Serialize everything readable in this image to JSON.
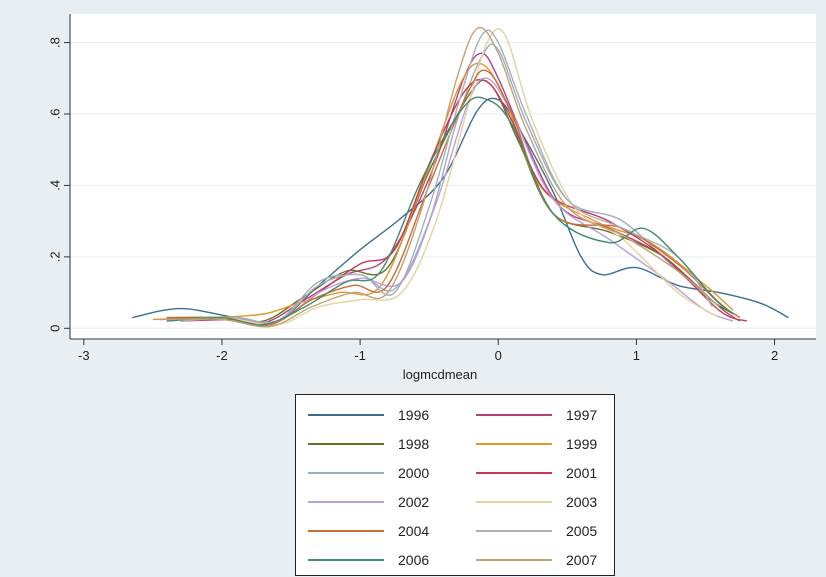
{
  "chart_data": {
    "type": "line",
    "title": "",
    "xlabel": "logmcdmean",
    "ylabel": "",
    "xlim": [
      -3.1,
      2.3
    ],
    "ylim": [
      -0.03,
      0.88
    ],
    "xticks": [
      -3,
      -2,
      -1,
      0,
      1,
      2
    ],
    "xtick_labels": [
      "-3",
      "-2",
      "-1",
      "0",
      "1",
      "2"
    ],
    "yticks": [
      0,
      0.2,
      0.4,
      0.6,
      0.8
    ],
    "ytick_labels": [
      "0",
      ".2",
      ".4",
      ".6",
      ".8"
    ],
    "grid": true,
    "legend_position": "bottom",
    "series": [
      {
        "name": "1996",
        "color": "#3e6e8e",
        "points": [
          [
            -2.65,
            0.03
          ],
          [
            -2.3,
            0.055
          ],
          [
            -1.9,
            0.03
          ],
          [
            -1.6,
            0.02
          ],
          [
            -1.3,
            0.12
          ],
          [
            -1.0,
            0.22
          ],
          [
            -0.7,
            0.31
          ],
          [
            -0.4,
            0.42
          ],
          [
            -0.15,
            0.61
          ],
          [
            0.0,
            0.64
          ],
          [
            0.15,
            0.56
          ],
          [
            0.4,
            0.38
          ],
          [
            0.6,
            0.2
          ],
          [
            0.75,
            0.15
          ],
          [
            1.0,
            0.17
          ],
          [
            1.3,
            0.12
          ],
          [
            1.6,
            0.1
          ],
          [
            1.9,
            0.07
          ],
          [
            2.1,
            0.03
          ]
        ]
      },
      {
        "name": "1997",
        "color": "#b2437a",
        "points": [
          [
            -2.45,
            0.025
          ],
          [
            -2.0,
            0.03
          ],
          [
            -1.7,
            0.015
          ],
          [
            -1.4,
            0.08
          ],
          [
            -1.1,
            0.15
          ],
          [
            -0.8,
            0.2
          ],
          [
            -0.5,
            0.42
          ],
          [
            -0.25,
            0.7
          ],
          [
            -0.12,
            0.77
          ],
          [
            0.0,
            0.7
          ],
          [
            0.2,
            0.52
          ],
          [
            0.45,
            0.34
          ],
          [
            0.8,
            0.28
          ],
          [
            1.2,
            0.2
          ],
          [
            1.6,
            0.06
          ],
          [
            1.75,
            0.02
          ]
        ]
      },
      {
        "name": "1998",
        "color": "#6a6e2c",
        "points": [
          [
            -2.4,
            0.03
          ],
          [
            -2.0,
            0.03
          ],
          [
            -1.7,
            0.02
          ],
          [
            -1.4,
            0.09
          ],
          [
            -1.1,
            0.16
          ],
          [
            -0.8,
            0.17
          ],
          [
            -0.5,
            0.44
          ],
          [
            -0.2,
            0.66
          ],
          [
            -0.05,
            0.68
          ],
          [
            0.15,
            0.52
          ],
          [
            0.4,
            0.32
          ],
          [
            0.8,
            0.27
          ],
          [
            1.2,
            0.2
          ],
          [
            1.5,
            0.09
          ],
          [
            1.7,
            0.04
          ]
        ]
      },
      {
        "name": "1999",
        "color": "#e0962c",
        "points": [
          [
            -2.5,
            0.025
          ],
          [
            -2.1,
            0.03
          ],
          [
            -1.7,
            0.04
          ],
          [
            -1.45,
            0.07
          ],
          [
            -1.15,
            0.1
          ],
          [
            -0.85,
            0.12
          ],
          [
            -0.55,
            0.4
          ],
          [
            -0.28,
            0.68
          ],
          [
            -0.12,
            0.74
          ],
          [
            0.05,
            0.64
          ],
          [
            0.3,
            0.4
          ],
          [
            0.7,
            0.3
          ],
          [
            1.1,
            0.24
          ],
          [
            1.5,
            0.12
          ],
          [
            1.7,
            0.05
          ]
        ]
      },
      {
        "name": "2000",
        "color": "#9db0bf",
        "points": [
          [
            -2.3,
            0.02
          ],
          [
            -1.9,
            0.03
          ],
          [
            -1.6,
            0.02
          ],
          [
            -1.3,
            0.13
          ],
          [
            -1.0,
            0.15
          ],
          [
            -0.75,
            0.11
          ],
          [
            -0.5,
            0.3
          ],
          [
            -0.3,
            0.58
          ],
          [
            -0.12,
            0.76
          ],
          [
            0.0,
            0.78
          ],
          [
            0.2,
            0.58
          ],
          [
            0.5,
            0.36
          ],
          [
            0.9,
            0.3
          ],
          [
            1.3,
            0.16
          ],
          [
            1.6,
            0.06
          ]
        ]
      },
      {
        "name": "2001",
        "color": "#c83a52",
        "points": [
          [
            -2.3,
            0.02
          ],
          [
            -1.9,
            0.025
          ],
          [
            -1.6,
            0.02
          ],
          [
            -1.3,
            0.1
          ],
          [
            -1.0,
            0.18
          ],
          [
            -0.75,
            0.22
          ],
          [
            -0.5,
            0.46
          ],
          [
            -0.25,
            0.66
          ],
          [
            -0.08,
            0.69
          ],
          [
            0.1,
            0.58
          ],
          [
            0.35,
            0.38
          ],
          [
            0.8,
            0.3
          ],
          [
            1.2,
            0.2
          ],
          [
            1.6,
            0.05
          ],
          [
            1.8,
            0.02
          ]
        ]
      },
      {
        "name": "2002",
        "color": "#b9a0df",
        "points": [
          [
            -2.4,
            0.02
          ],
          [
            -2.0,
            0.03
          ],
          [
            -1.6,
            0.02
          ],
          [
            -1.3,
            0.1
          ],
          [
            -1.0,
            0.14
          ],
          [
            -0.7,
            0.13
          ],
          [
            -0.45,
            0.35
          ],
          [
            -0.22,
            0.63
          ],
          [
            -0.08,
            0.7
          ],
          [
            0.1,
            0.6
          ],
          [
            0.4,
            0.36
          ],
          [
            0.8,
            0.25
          ],
          [
            1.2,
            0.14
          ],
          [
            1.5,
            0.05
          ],
          [
            1.7,
            0.02
          ]
        ]
      },
      {
        "name": "2003",
        "color": "#e2d49a",
        "points": [
          [
            -2.4,
            0.02
          ],
          [
            -2.0,
            0.03
          ],
          [
            -1.6,
            0.01
          ],
          [
            -1.3,
            0.06
          ],
          [
            -1.0,
            0.08
          ],
          [
            -0.7,
            0.1
          ],
          [
            -0.45,
            0.3
          ],
          [
            -0.22,
            0.62
          ],
          [
            -0.08,
            0.8
          ],
          [
            0.05,
            0.82
          ],
          [
            0.25,
            0.58
          ],
          [
            0.55,
            0.34
          ],
          [
            0.9,
            0.25
          ],
          [
            1.3,
            0.1
          ],
          [
            1.6,
            0.03
          ]
        ]
      },
      {
        "name": "2004",
        "color": "#c96e34",
        "points": [
          [
            -2.4,
            0.03
          ],
          [
            -2.0,
            0.025
          ],
          [
            -1.65,
            0.01
          ],
          [
            -1.35,
            0.08
          ],
          [
            -1.05,
            0.12
          ],
          [
            -0.8,
            0.12
          ],
          [
            -0.5,
            0.4
          ],
          [
            -0.22,
            0.66
          ],
          [
            -0.08,
            0.72
          ],
          [
            0.1,
            0.6
          ],
          [
            0.4,
            0.32
          ],
          [
            0.9,
            0.28
          ],
          [
            1.3,
            0.18
          ],
          [
            1.6,
            0.07
          ],
          [
            1.75,
            0.03
          ]
        ]
      },
      {
        "name": "2005",
        "color": "#a8b0b8",
        "points": [
          [
            -2.3,
            0.02
          ],
          [
            -1.9,
            0.03
          ],
          [
            -1.6,
            0.02
          ],
          [
            -1.3,
            0.12
          ],
          [
            -1.0,
            0.15
          ],
          [
            -0.75,
            0.1
          ],
          [
            -0.5,
            0.34
          ],
          [
            -0.28,
            0.64
          ],
          [
            -0.12,
            0.82
          ],
          [
            0.0,
            0.8
          ],
          [
            0.2,
            0.6
          ],
          [
            0.5,
            0.36
          ],
          [
            0.9,
            0.28
          ],
          [
            1.3,
            0.2
          ],
          [
            1.55,
            0.06
          ]
        ]
      },
      {
        "name": "2006",
        "color": "#3f8c6e",
        "points": [
          [
            -2.4,
            0.02
          ],
          [
            -2.0,
            0.03
          ],
          [
            -1.7,
            0.01
          ],
          [
            -1.4,
            0.06
          ],
          [
            -1.1,
            0.13
          ],
          [
            -0.85,
            0.16
          ],
          [
            -0.55,
            0.42
          ],
          [
            -0.25,
            0.62
          ],
          [
            -0.08,
            0.64
          ],
          [
            0.1,
            0.57
          ],
          [
            0.4,
            0.32
          ],
          [
            0.8,
            0.24
          ],
          [
            1.05,
            0.28
          ],
          [
            1.3,
            0.2
          ],
          [
            1.55,
            0.09
          ],
          [
            1.7,
            0.04
          ]
        ]
      },
      {
        "name": "2007",
        "color": "#c0a274",
        "points": [
          [
            -2.45,
            0.025
          ],
          [
            -2.0,
            0.025
          ],
          [
            -1.65,
            0.005
          ],
          [
            -1.35,
            0.06
          ],
          [
            -1.05,
            0.1
          ],
          [
            -0.8,
            0.1
          ],
          [
            -0.55,
            0.34
          ],
          [
            -0.3,
            0.7
          ],
          [
            -0.15,
            0.84
          ],
          [
            0.0,
            0.77
          ],
          [
            0.2,
            0.56
          ],
          [
            0.5,
            0.34
          ],
          [
            0.9,
            0.26
          ],
          [
            1.3,
            0.16
          ],
          [
            1.6,
            0.06
          ]
        ]
      }
    ]
  }
}
